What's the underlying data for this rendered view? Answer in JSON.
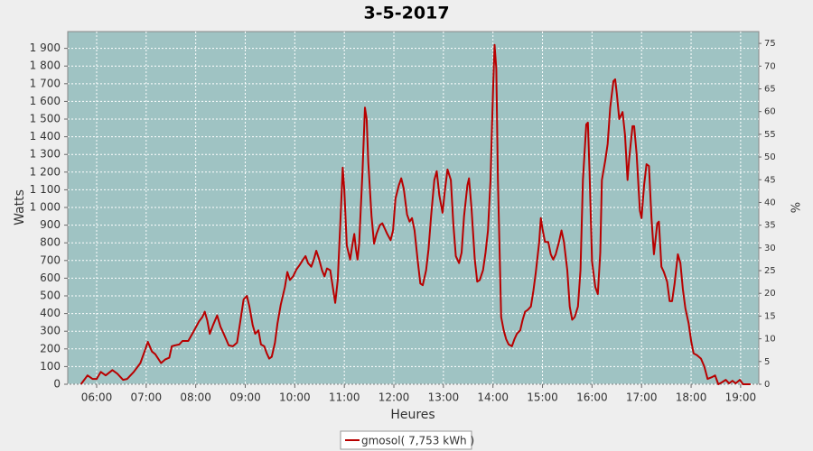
{
  "chart_data": {
    "type": "line",
    "title": "3-5-2017",
    "x_label": "Heures",
    "y_label": "Watts",
    "y2_label": "%",
    "x": [
      "05:41",
      "05:49",
      "05:55",
      "06:00",
      "06:05",
      "06:11",
      "06:19",
      "06:25",
      "06:32",
      "06:37",
      "06:45",
      "06:53",
      "06:58",
      "07:02",
      "07:07",
      "07:11",
      "07:18",
      "07:23",
      "07:28",
      "07:31",
      "07:35",
      "07:40",
      "07:44",
      "07:51",
      "07:57",
      "08:04",
      "08:08",
      "08:11",
      "08:14",
      "08:17",
      "08:21",
      "08:26",
      "08:30",
      "08:34",
      "08:40",
      "08:45",
      "08:50",
      "08:54",
      "08:58",
      "09:02",
      "09:05",
      "09:09",
      "09:12",
      "09:16",
      "09:19",
      "09:23",
      "09:26",
      "09:29",
      "09:32",
      "09:36",
      "09:39",
      "09:43",
      "09:48",
      "09:51",
      "09:54",
      "09:58",
      "10:02",
      "10:06",
      "10:10",
      "10:13",
      "10:16",
      "10:20",
      "10:23",
      "10:26",
      "10:29",
      "10:33",
      "10:36",
      "10:39",
      "10:43",
      "10:46",
      "10:49",
      "10:52",
      "10:56",
      "10:58",
      "11:00",
      "11:03",
      "11:07",
      "11:10",
      "11:12",
      "11:14",
      "11:16",
      "11:18",
      "11:22",
      "11:25",
      "11:27",
      "11:29",
      "11:33",
      "11:36",
      "11:39",
      "11:43",
      "11:46",
      "11:49",
      "11:52",
      "11:56",
      "11:59",
      "12:02",
      "12:06",
      "12:09",
      "12:12",
      "12:16",
      "12:19",
      "12:22",
      "12:25",
      "12:29",
      "12:32",
      "12:35",
      "12:39",
      "12:42",
      "12:45",
      "12:49",
      "12:52",
      "12:55",
      "12:59",
      "13:02",
      "13:05",
      "13:09",
      "13:12",
      "13:15",
      "13:19",
      "13:22",
      "13:25",
      "13:29",
      "13:31",
      "13:34",
      "13:38",
      "13:41",
      "13:44",
      "13:48",
      "13:51",
      "13:54",
      "13:57",
      "14:00",
      "14:02",
      "14:04",
      "14:06",
      "14:10",
      "14:13",
      "14:16",
      "14:19",
      "14:23",
      "14:26",
      "14:29",
      "14:33",
      "14:36",
      "14:39",
      "14:42",
      "14:46",
      "14:49",
      "14:52",
      "14:56",
      "14:58",
      "15:00",
      "15:03",
      "15:07",
      "15:10",
      "15:13",
      "15:16",
      "15:20",
      "15:23",
      "15:26",
      "15:30",
      "15:33",
      "15:36",
      "15:39",
      "15:43",
      "15:46",
      "15:49",
      "15:53",
      "15:55",
      "15:57",
      "16:00",
      "16:04",
      "16:07",
      "16:10",
      "16:12",
      "16:16",
      "16:19",
      "16:22",
      "16:26",
      "16:28",
      "16:30",
      "16:33",
      "16:37",
      "16:40",
      "16:43",
      "16:45",
      "16:49",
      "16:51",
      "16:54",
      "16:58",
      "17:00",
      "17:03",
      "17:06",
      "17:09",
      "17:12",
      "17:15",
      "17:19",
      "17:21",
      "17:24",
      "17:27",
      "17:31",
      "17:34",
      "17:37",
      "17:40",
      "17:44",
      "17:47",
      "17:50",
      "17:53",
      "17:57",
      "18:00",
      "18:03",
      "18:07",
      "18:12",
      "18:16",
      "18:20",
      "18:25",
      "18:29",
      "18:33",
      "18:37",
      "18:42",
      "18:46",
      "18:50",
      "18:54",
      "18:59",
      "19:03",
      "19:12"
    ],
    "series": [
      {
        "name": "gmosol( 7,753 kWh )",
        "color": "#b80000",
        "values": [
          0,
          50,
          30,
          30,
          70,
          50,
          80,
          60,
          25,
          30,
          70,
          120,
          185,
          240,
          185,
          170,
          120,
          140,
          150,
          215,
          220,
          225,
          245,
          245,
          295,
          355,
          380,
          410,
          360,
          285,
          335,
          390,
          325,
          285,
          220,
          215,
          235,
          355,
          480,
          500,
          440,
          335,
          285,
          305,
          225,
          215,
          175,
          145,
          155,
          235,
          345,
          450,
          550,
          635,
          590,
          610,
          650,
          675,
          705,
          725,
          685,
          665,
          705,
          755,
          715,
          645,
          610,
          655,
          645,
          550,
          460,
          590,
          1000,
          1225,
          1095,
          785,
          705,
          795,
          850,
          765,
          705,
          795,
          1205,
          1565,
          1500,
          1255,
          950,
          795,
          850,
          900,
          910,
          880,
          850,
          815,
          870,
          1050,
          1125,
          1165,
          1105,
          960,
          920,
          940,
          870,
          695,
          570,
          560,
          645,
          765,
          950,
          1155,
          1205,
          1070,
          970,
          1105,
          1215,
          1155,
          910,
          725,
          685,
          745,
          950,
          1125,
          1165,
          1000,
          705,
          580,
          590,
          645,
          745,
          870,
          1155,
          1645,
          1920,
          1785,
          1155,
          380,
          305,
          255,
          225,
          215,
          255,
          285,
          305,
          365,
          410,
          420,
          440,
          530,
          635,
          805,
          940,
          880,
          805,
          805,
          735,
          705,
          735,
          805,
          870,
          805,
          645,
          440,
          365,
          380,
          440,
          645,
          1155,
          1470,
          1480,
          1205,
          695,
          550,
          510,
          745,
          1155,
          1265,
          1360,
          1565,
          1715,
          1725,
          1645,
          1500,
          1540,
          1410,
          1155,
          1275,
          1460,
          1460,
          1305,
          980,
          940,
          1125,
          1245,
          1235,
          940,
          735,
          910,
          920,
          665,
          635,
          580,
          470,
          470,
          570,
          735,
          685,
          540,
          430,
          345,
          245,
          175,
          165,
          145,
          100,
          30,
          40,
          50,
          0,
          10,
          25,
          5,
          20,
          5,
          25,
          0,
          0
        ]
      }
    ],
    "xlim": [
      "05:25",
      "19:22"
    ],
    "xticks": [
      "06:00",
      "07:00",
      "08:00",
      "09:00",
      "10:00",
      "11:00",
      "12:00",
      "13:00",
      "14:00",
      "15:00",
      "16:00",
      "17:00",
      "18:00",
      "19:00"
    ],
    "ylim": [
      0,
      1995
    ],
    "yticks": [
      0,
      100,
      200,
      300,
      400,
      500,
      600,
      700,
      800,
      900,
      {
        "value": 1000,
        "label": "1 000"
      },
      {
        "value": 1100,
        "label": "1 100"
      },
      {
        "value": 1200,
        "label": "1 200"
      },
      {
        "value": 1300,
        "label": "1 300"
      },
      {
        "value": 1400,
        "label": "1 400"
      },
      {
        "value": 1500,
        "label": "1 500"
      },
      {
        "value": 1600,
        "label": "1 600"
      },
      {
        "value": 1700,
        "label": "1 700"
      },
      {
        "value": 1800,
        "label": "1 800"
      },
      {
        "value": 1900,
        "label": "1 900"
      }
    ],
    "y2lim": [
      0,
      77.6
    ],
    "y2ticks": [
      0,
      5,
      10,
      15,
      20,
      25,
      30,
      35,
      40,
      45,
      50,
      55,
      60,
      65,
      70,
      75
    ],
    "grid": true,
    "legend": "bottom"
  }
}
